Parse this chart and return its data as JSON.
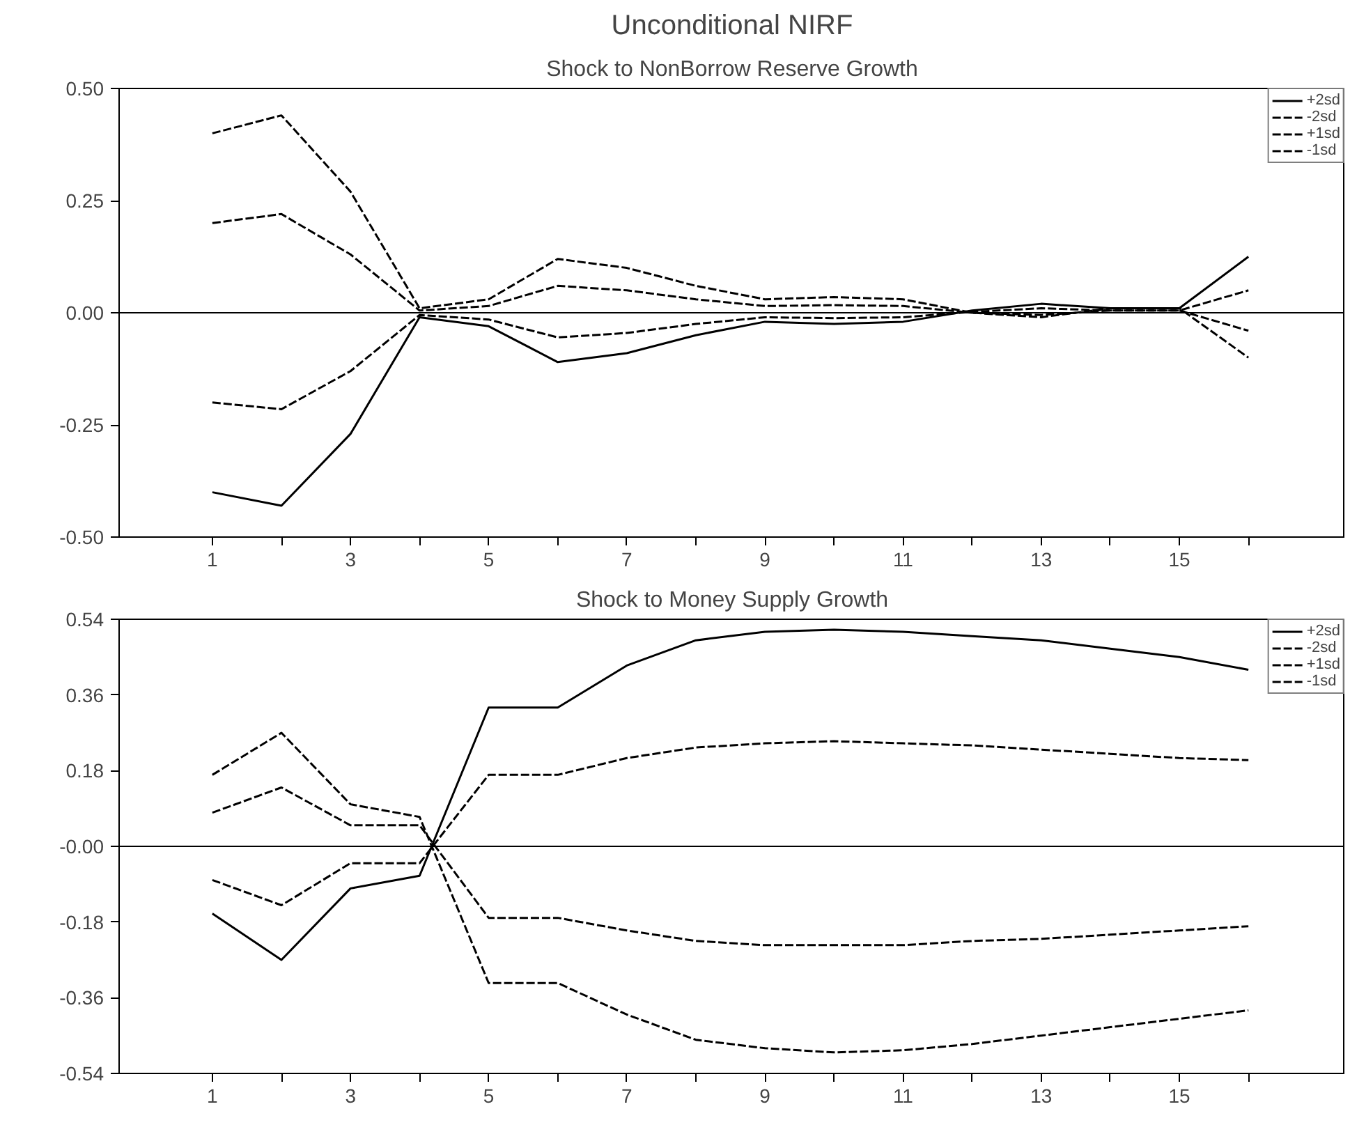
{
  "chart_data": [
    {
      "type": "line",
      "title": "Unconditional NIRF",
      "subtitle": "Shock to NonBorrow Reserve Growth",
      "x": [
        1,
        2,
        3,
        4,
        5,
        6,
        7,
        8,
        9,
        10,
        11,
        12,
        13,
        14,
        15,
        16
      ],
      "xlim": [
        -0.35,
        17.4
      ],
      "xticks": [
        1,
        {
          "value": 2,
          "label": null
        },
        3,
        {
          "value": 4,
          "label": null
        },
        5,
        {
          "value": 6,
          "label": null
        },
        7,
        {
          "value": 8,
          "label": null
        },
        9,
        {
          "value": 10,
          "label": null
        },
        11,
        {
          "value": 12,
          "label": null
        },
        13,
        {
          "value": 14,
          "label": null
        },
        15,
        {
          "value": 16,
          "label": null
        }
      ],
      "ylim": [
        -0.5,
        0.5
      ],
      "yticks": [
        {
          "value": 0.5,
          "label": "0.50"
        },
        {
          "value": 0.25,
          "label": "0.25"
        },
        {
          "value": 0,
          "label": "0.00"
        },
        {
          "value": -0.25,
          "label": "-0.25"
        },
        {
          "value": -0.5,
          "label": "-0.50"
        }
      ],
      "ref_lines": [
        {
          "axis": "y",
          "value": 0,
          "label": null
        }
      ],
      "grid": false,
      "legend": "top right",
      "series": [
        {
          "name": "+2sd",
          "color": "#000000",
          "line_style": "solid",
          "values": [
            -0.4,
            -0.43,
            -0.27,
            -0.01,
            -0.03,
            -0.11,
            -0.09,
            -0.05,
            -0.02,
            -0.025,
            -0.02,
            0.005,
            0.02,
            0.01,
            0.01,
            0.125
          ]
        },
        {
          "name": "-2sd",
          "color": "#000000",
          "line_style": "dashed",
          "values": [
            0.4,
            0.44,
            0.27,
            0.01,
            0.03,
            0.12,
            0.1,
            0.06,
            0.03,
            0.035,
            0.03,
            0.0,
            -0.01,
            0.01,
            0.01,
            -0.1
          ]
        },
        {
          "name": "+1sd",
          "color": "#000000",
          "line_style": "dashed",
          "values": [
            -0.2,
            -0.215,
            -0.13,
            -0.005,
            -0.015,
            -0.055,
            -0.045,
            -0.025,
            -0.01,
            -0.012,
            -0.01,
            0.002,
            0.01,
            0.005,
            0.005,
            0.05
          ]
        },
        {
          "name": "-1sd",
          "color": "#000000",
          "line_style": "dashed",
          "values": [
            0.2,
            0.22,
            0.13,
            0.005,
            0.015,
            0.06,
            0.05,
            0.03,
            0.015,
            0.017,
            0.015,
            0.0,
            -0.005,
            0.005,
            0.005,
            -0.04
          ]
        }
      ]
    },
    {
      "type": "line",
      "title": "Shock to Money Supply Growth",
      "x": [
        1,
        2,
        3,
        4,
        5,
        6,
        7,
        8,
        9,
        10,
        11,
        12,
        13,
        14,
        15,
        16
      ],
      "xlim": [
        -0.35,
        17.4
      ],
      "xticks": [
        1,
        {
          "value": 2,
          "label": null
        },
        3,
        {
          "value": 4,
          "label": null
        },
        5,
        {
          "value": 6,
          "label": null
        },
        7,
        {
          "value": 8,
          "label": null
        },
        9,
        {
          "value": 10,
          "label": null
        },
        11,
        {
          "value": 12,
          "label": null
        },
        13,
        {
          "value": 14,
          "label": null
        },
        15,
        {
          "value": 16,
          "label": null
        }
      ],
      "ylim": [
        -0.54,
        0.54
      ],
      "yticks": [
        0.54,
        0.36,
        0.18,
        {
          "value": 0,
          "label": "-0.00"
        },
        -0.18,
        -0.36,
        -0.54
      ],
      "ref_lines": [
        {
          "axis": "y",
          "value": 0,
          "label": null
        }
      ],
      "grid": false,
      "legend": "top right",
      "series": [
        {
          "name": "+2sd",
          "color": "#000000",
          "line_style": "solid",
          "values": [
            -0.16,
            -0.27,
            -0.1,
            -0.07,
            0.33,
            0.33,
            0.43,
            0.49,
            0.51,
            0.515,
            0.51,
            0.5,
            0.49,
            0.47,
            0.45,
            0.42
          ]
        },
        {
          "name": "-2sd",
          "color": "#000000",
          "line_style": "dashed",
          "values": [
            0.17,
            0.27,
            0.1,
            0.07,
            -0.325,
            -0.325,
            -0.4,
            -0.46,
            -0.48,
            -0.49,
            -0.485,
            -0.47,
            -0.45,
            -0.43,
            -0.41,
            -0.39
          ]
        },
        {
          "name": "+1sd",
          "color": "#000000",
          "line_style": "dashed",
          "values": [
            -0.08,
            -0.14,
            -0.04,
            -0.04,
            0.17,
            0.17,
            0.21,
            0.235,
            0.245,
            0.25,
            0.245,
            0.24,
            0.23,
            0.22,
            0.21,
            0.205
          ]
        },
        {
          "name": "-1sd",
          "color": "#000000",
          "line_style": "dashed",
          "values": [
            0.08,
            0.14,
            0.05,
            0.05,
            -0.17,
            -0.17,
            -0.2,
            -0.225,
            -0.235,
            -0.235,
            -0.235,
            -0.225,
            -0.22,
            -0.21,
            -0.2,
            -0.19
          ]
        }
      ]
    }
  ]
}
